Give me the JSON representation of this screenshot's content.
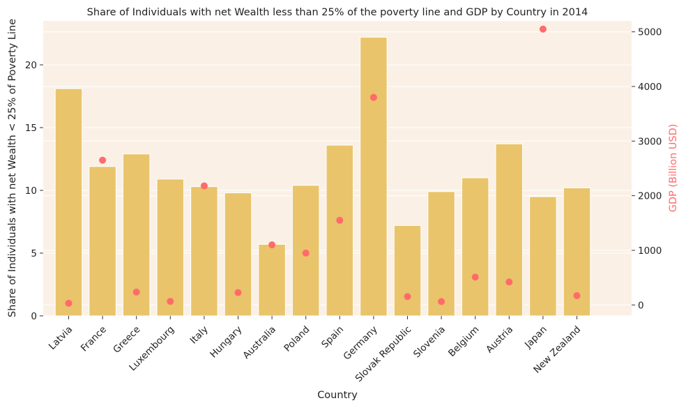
{
  "chart_data": {
    "type": "bar",
    "title": "Share of Individuals with net Wealth less than 25% of the poverty line and GDP by Country in 2014",
    "xlabel": "Country",
    "ylabel": "Share of Individuals with net Wealth < 25% of Poverty Line",
    "y2label": "GDP (Billion USD)",
    "categories": [
      "Latvia",
      "France",
      "Greece",
      "Luxembourg",
      "Italy",
      "Hungary",
      "Australia",
      "Poland",
      "Spain",
      "Germany",
      "Slovak Republic",
      "Slovenia",
      "Belgium",
      "Austria",
      "Japan",
      "New Zealand"
    ],
    "series": [
      {
        "type": "bar",
        "axis": "left",
        "color": "#e9c46a",
        "values": [
          18.1,
          11.9,
          12.9,
          10.9,
          10.3,
          9.8,
          5.7,
          10.4,
          13.6,
          22.2,
          7.2,
          9.9,
          11.0,
          13.7,
          9.5,
          10.2
        ]
      },
      {
        "type": "scatter",
        "axis": "right",
        "color": "#ff6b6b",
        "values": [
          31,
          2650,
          236,
          65,
          2180,
          226,
          1100,
          950,
          1550,
          3800,
          153,
          62,
          510,
          420,
          5050,
          170
        ]
      }
    ],
    "ylim": [
      0,
      23.5
    ],
    "yticks": [
      0,
      5,
      10,
      15,
      20
    ],
    "y2lim": [
      -200,
      5200
    ],
    "y2ticks": [
      0,
      1000,
      2000,
      3000,
      4000,
      5000
    ],
    "grid": true,
    "background": "#faf0e6"
  }
}
